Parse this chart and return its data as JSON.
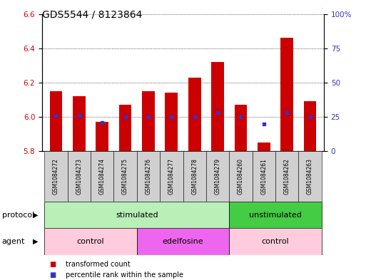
{
  "title": "GDS5544 / 8123864",
  "samples": [
    "GSM1084272",
    "GSM1084273",
    "GSM1084274",
    "GSM1084275",
    "GSM1084276",
    "GSM1084277",
    "GSM1084278",
    "GSM1084279",
    "GSM1084260",
    "GSM1084261",
    "GSM1084262",
    "GSM1084263"
  ],
  "red_values": [
    6.15,
    6.12,
    5.97,
    6.07,
    6.15,
    6.14,
    6.23,
    6.32,
    6.07,
    5.85,
    6.46,
    6.09
  ],
  "blue_values": [
    26,
    26,
    21,
    25,
    25,
    25,
    25,
    28,
    25,
    20,
    28,
    25
  ],
  "ylim_left": [
    5.8,
    6.6
  ],
  "ylim_right": [
    0,
    100
  ],
  "yticks_left": [
    5.8,
    6.0,
    6.2,
    6.4,
    6.6
  ],
  "yticks_right": [
    0,
    25,
    50,
    75,
    100
  ],
  "ytick_labels_right": [
    "0",
    "25",
    "50",
    "75",
    "100%"
  ],
  "bar_bottom": 5.8,
  "red_color": "#cc0000",
  "blue_color": "#3333cc",
  "grid_color": "#000000",
  "bg_color": "#ffffff",
  "plot_bg": "#ffffff",
  "protocol_groups": [
    {
      "label": "stimulated",
      "start": 0,
      "end": 7,
      "color": "#b8f0b8"
    },
    {
      "label": "unstimulated",
      "start": 8,
      "end": 11,
      "color": "#44cc44"
    }
  ],
  "agent_groups": [
    {
      "label": "control",
      "start": 0,
      "end": 3,
      "color": "#ffccdd"
    },
    {
      "label": "edelfosine",
      "start": 4,
      "end": 7,
      "color": "#ee66ee"
    },
    {
      "label": "control",
      "start": 8,
      "end": 11,
      "color": "#ffccdd"
    }
  ],
  "legend_items": [
    {
      "label": "transformed count",
      "color": "#cc0000"
    },
    {
      "label": "percentile rank within the sample",
      "color": "#3333cc"
    }
  ],
  "protocol_label": "protocol",
  "agent_label": "agent",
  "title_fontsize": 10,
  "tick_fontsize": 7.5,
  "label_fontsize": 8
}
